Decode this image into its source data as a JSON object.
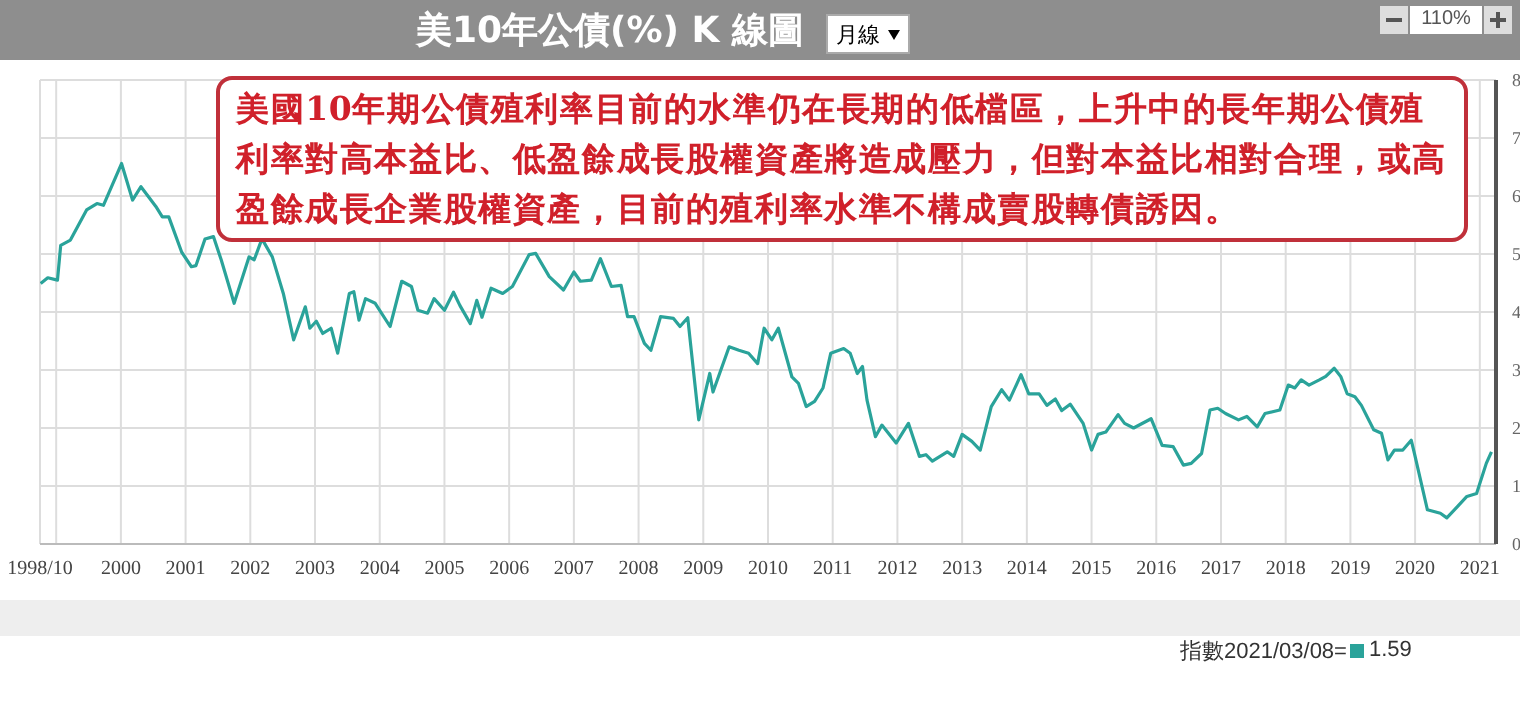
{
  "chart_data": {
    "type": "line",
    "title": "美10年公債(%) K 線圖",
    "annotations": [
      "美國10年期公債殖利率目前的水準仍在長期的低檔區，上升中的長年期公債殖利率對高本益比、低盈餘成長股權資產將造成壓力，但對本益比相對合理，或高盈餘成長企業股權資產，目前的殖利率水準不構成賣股轉債誘因。",
      "月線",
      "110%",
      "指數2021/03/08=",
      "1.59"
    ],
    "x": [
      1998.76,
      1998.87,
      1999.02,
      1999.07,
      1999.22,
      1999.47,
      1999.63,
      1999.73,
      2000.01,
      2000.18,
      2000.31,
      2000.54,
      2000.64,
      2000.74,
      2000.94,
      2001.09,
      2001.16,
      2001.3,
      2001.43,
      2001.55,
      2001.75,
      2001.98,
      2002.06,
      2002.18,
      2002.34,
      2002.51,
      2002.67,
      2002.85,
      2002.92,
      2003.02,
      2003.12,
      2003.25,
      2003.35,
      2003.53,
      2003.6,
      2003.68,
      2003.78,
      2003.93,
      2004.16,
      2004.34,
      2004.49,
      2004.59,
      2004.74,
      2004.84,
      2005.0,
      2005.14,
      2005.24,
      2005.4,
      2005.5,
      2005.58,
      2005.72,
      2005.9,
      2006.05,
      2006.31,
      2006.41,
      2006.62,
      2006.84,
      2007.0,
      2007.1,
      2007.27,
      2007.41,
      2007.58,
      2007.73,
      2007.83,
      2007.93,
      2008.09,
      2008.19,
      2008.34,
      2008.54,
      2008.64,
      2008.76,
      2008.93,
      2009.1,
      2009.15,
      2009.4,
      2009.55,
      2009.7,
      2009.84,
      2009.94,
      2010.06,
      2010.16,
      2010.37,
      2010.47,
      2010.59,
      2010.72,
      2010.85,
      2010.97,
      2011.17,
      2011.27,
      2011.38,
      2011.46,
      2011.53,
      2011.66,
      2011.76,
      2011.98,
      2012.17,
      2012.34,
      2012.44,
      2012.54,
      2012.77,
      2012.87,
      2013.0,
      2013.15,
      2013.28,
      2013.45,
      2013.61,
      2013.73,
      2013.91,
      2014.03,
      2014.19,
      2014.31,
      2014.44,
      2014.54,
      2014.67,
      2014.87,
      2015.0,
      2015.1,
      2015.22,
      2015.41,
      2015.51,
      2015.65,
      2015.92,
      2016.09,
      2016.26,
      2016.42,
      2016.54,
      2016.7,
      2016.83,
      2016.95,
      2017.07,
      2017.27,
      2017.4,
      2017.56,
      2017.68,
      2017.91,
      2018.04,
      2018.14,
      2018.24,
      2018.36,
      2018.52,
      2018.62,
      2018.75,
      2018.85,
      2018.95,
      2019.07,
      2019.17,
      2019.36,
      2019.48,
      2019.58,
      2019.68,
      2019.81,
      2019.94,
      2019.99,
      2020.19,
      2020.39,
      2020.49,
      2020.65,
      2020.8,
      2020.95,
      2021.1,
      2021.18
    ],
    "series": [
      {
        "color": "#2aa39a",
        "values": [
          4.49,
          4.59,
          4.55,
          5.15,
          5.24,
          5.76,
          5.87,
          5.84,
          6.56,
          5.93,
          6.16,
          5.82,
          5.64,
          5.64,
          5.03,
          4.78,
          4.8,
          5.26,
          5.3,
          4.9,
          4.15,
          4.95,
          4.9,
          5.26,
          4.95,
          4.32,
          3.52,
          4.09,
          3.72,
          3.84,
          3.63,
          3.72,
          3.29,
          4.32,
          4.35,
          3.86,
          4.23,
          4.15,
          3.75,
          4.53,
          4.44,
          4.03,
          3.98,
          4.23,
          4.03,
          4.34,
          4.11,
          3.8,
          4.2,
          3.91,
          4.41,
          4.32,
          4.44,
          4.99,
          5.01,
          4.61,
          4.38,
          4.69,
          4.53,
          4.55,
          4.92,
          4.44,
          4.46,
          3.92,
          3.92,
          3.46,
          3.34,
          3.92,
          3.89,
          3.75,
          3.9,
          2.14,
          2.94,
          2.62,
          3.4,
          3.34,
          3.29,
          3.11,
          3.72,
          3.52,
          3.72,
          2.88,
          2.77,
          2.37,
          2.46,
          2.69,
          3.29,
          3.37,
          3.29,
          2.94,
          3.06,
          2.48,
          1.85,
          2.05,
          1.74,
          2.08,
          1.51,
          1.54,
          1.43,
          1.59,
          1.51,
          1.89,
          1.77,
          1.62,
          2.37,
          2.66,
          2.48,
          2.92,
          2.59,
          2.59,
          2.39,
          2.5,
          2.3,
          2.41,
          2.08,
          1.62,
          1.89,
          1.93,
          2.23,
          2.08,
          2.0,
          2.16,
          1.7,
          1.68,
          1.36,
          1.39,
          1.56,
          2.31,
          2.34,
          2.25,
          2.14,
          2.2,
          2.02,
          2.25,
          2.31,
          2.74,
          2.69,
          2.83,
          2.74,
          2.83,
          2.89,
          3.03,
          2.89,
          2.59,
          2.54,
          2.39,
          1.97,
          1.91,
          1.45,
          1.62,
          1.62,
          1.79,
          1.56,
          0.59,
          0.53,
          0.45,
          0.64,
          0.82,
          0.87,
          1.39,
          1.59
        ]
      }
    ],
    "xlim": [
      1998.75,
      2021.25
    ],
    "xticks": [
      {
        "value": 1998.75,
        "label": "1998/10"
      },
      {
        "value": 1999,
        "label": null
      },
      2000,
      2001,
      2002,
      2003,
      2004,
      2005,
      2006,
      2007,
      2008,
      2009,
      2010,
      2011,
      2012,
      2013,
      2014,
      2015,
      2016,
      2017,
      2018,
      2019,
      2020,
      2021
    ],
    "ylim": [
      0,
      8
    ],
    "yticks": [
      0,
      1,
      2,
      3,
      4,
      5,
      6,
      7,
      8
    ],
    "grid": true,
    "legend": false,
    "marker": "none",
    "line_style": "solid"
  }
}
